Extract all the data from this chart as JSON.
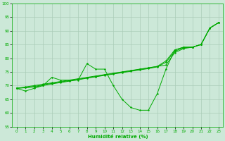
{
  "xlabel": "Humidité relative (%)",
  "bg_color": "#cce8d8",
  "grid_color": "#aaccb8",
  "line_color": "#00aa00",
  "ylim": [
    55,
    100
  ],
  "xlim": [
    -0.5,
    23.5
  ],
  "yticks": [
    55,
    60,
    65,
    70,
    75,
    80,
    85,
    90,
    95,
    100
  ],
  "xticks": [
    0,
    1,
    2,
    3,
    4,
    5,
    6,
    7,
    8,
    9,
    10,
    11,
    12,
    13,
    14,
    15,
    16,
    17,
    18,
    19,
    20,
    21,
    22,
    23
  ],
  "main_series": [
    69,
    68,
    69,
    70,
    73,
    72,
    72,
    72,
    78,
    76,
    76,
    70,
    65,
    62,
    61,
    61,
    67,
    76,
    83,
    84,
    84,
    85,
    91,
    93
  ],
  "trend1": [
    69.0,
    69.5,
    70.0,
    70.5,
    71.0,
    71.5,
    72.0,
    72.5,
    73.0,
    73.5,
    74.0,
    74.5,
    75.0,
    75.5,
    76.0,
    76.5,
    77.0,
    77.5,
    82.0,
    83.5,
    84.0,
    85.0,
    91.0,
    93.0
  ],
  "trend2": [
    69.0,
    69.3,
    69.7,
    70.2,
    70.8,
    71.3,
    71.8,
    72.3,
    72.8,
    73.3,
    73.9,
    74.4,
    74.9,
    75.4,
    75.9,
    76.4,
    77.0,
    79.0,
    83.0,
    84.0,
    84.0,
    85.0,
    91.0,
    93.0
  ],
  "trend3": [
    69.0,
    69.2,
    69.5,
    70.0,
    70.6,
    71.1,
    71.6,
    72.1,
    72.7,
    73.2,
    73.7,
    74.2,
    74.7,
    75.2,
    75.7,
    76.2,
    76.8,
    78.5,
    82.5,
    83.8,
    84.0,
    85.0,
    91.0,
    93.0
  ]
}
